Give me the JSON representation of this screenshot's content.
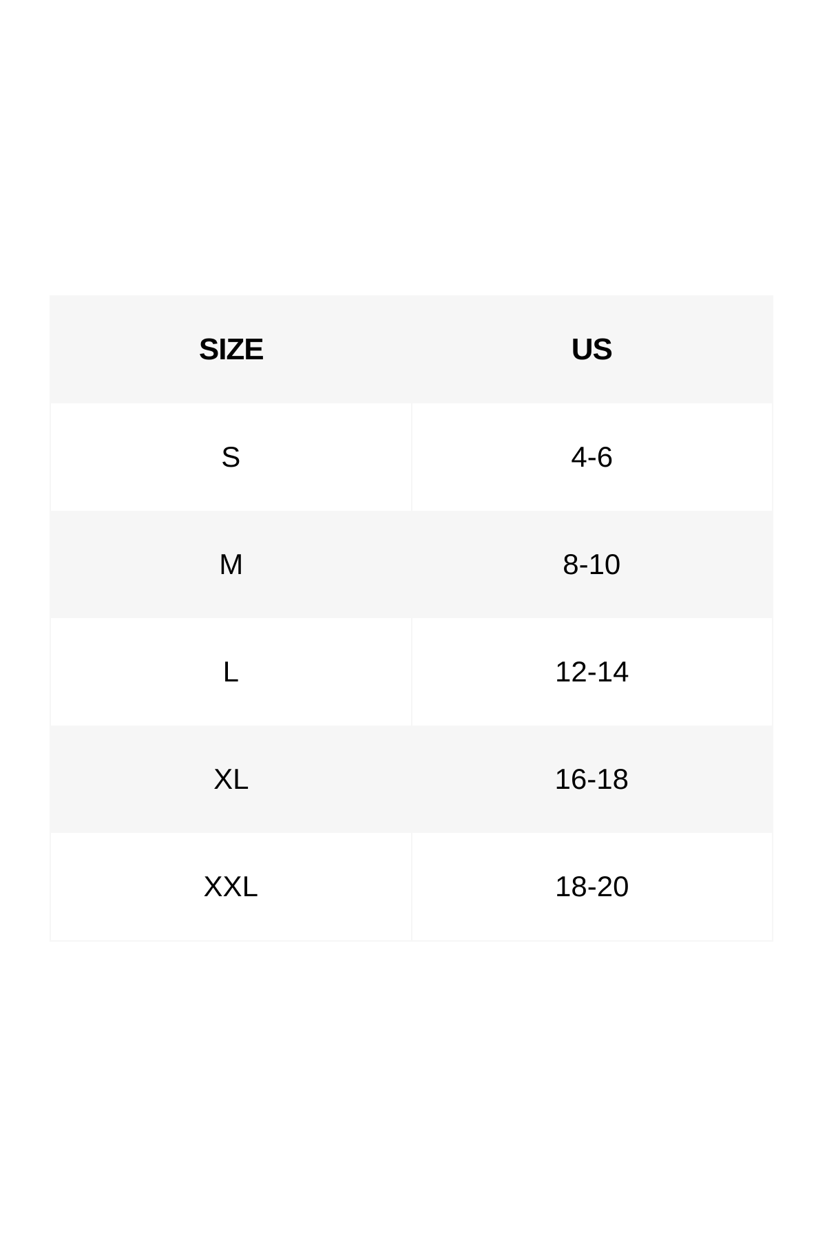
{
  "table": {
    "headers": [
      "SIZE",
      "US"
    ],
    "rows": [
      [
        "S",
        "4-6"
      ],
      [
        "M",
        "8-10"
      ],
      [
        "L",
        "12-14"
      ],
      [
        "XL",
        "16-18"
      ],
      [
        "XXL",
        "18-20"
      ]
    ]
  },
  "colors": {
    "header_bg": "#f6f6f6",
    "alt_row_bg": "#f6f6f6",
    "row_bg": "#ffffff"
  }
}
